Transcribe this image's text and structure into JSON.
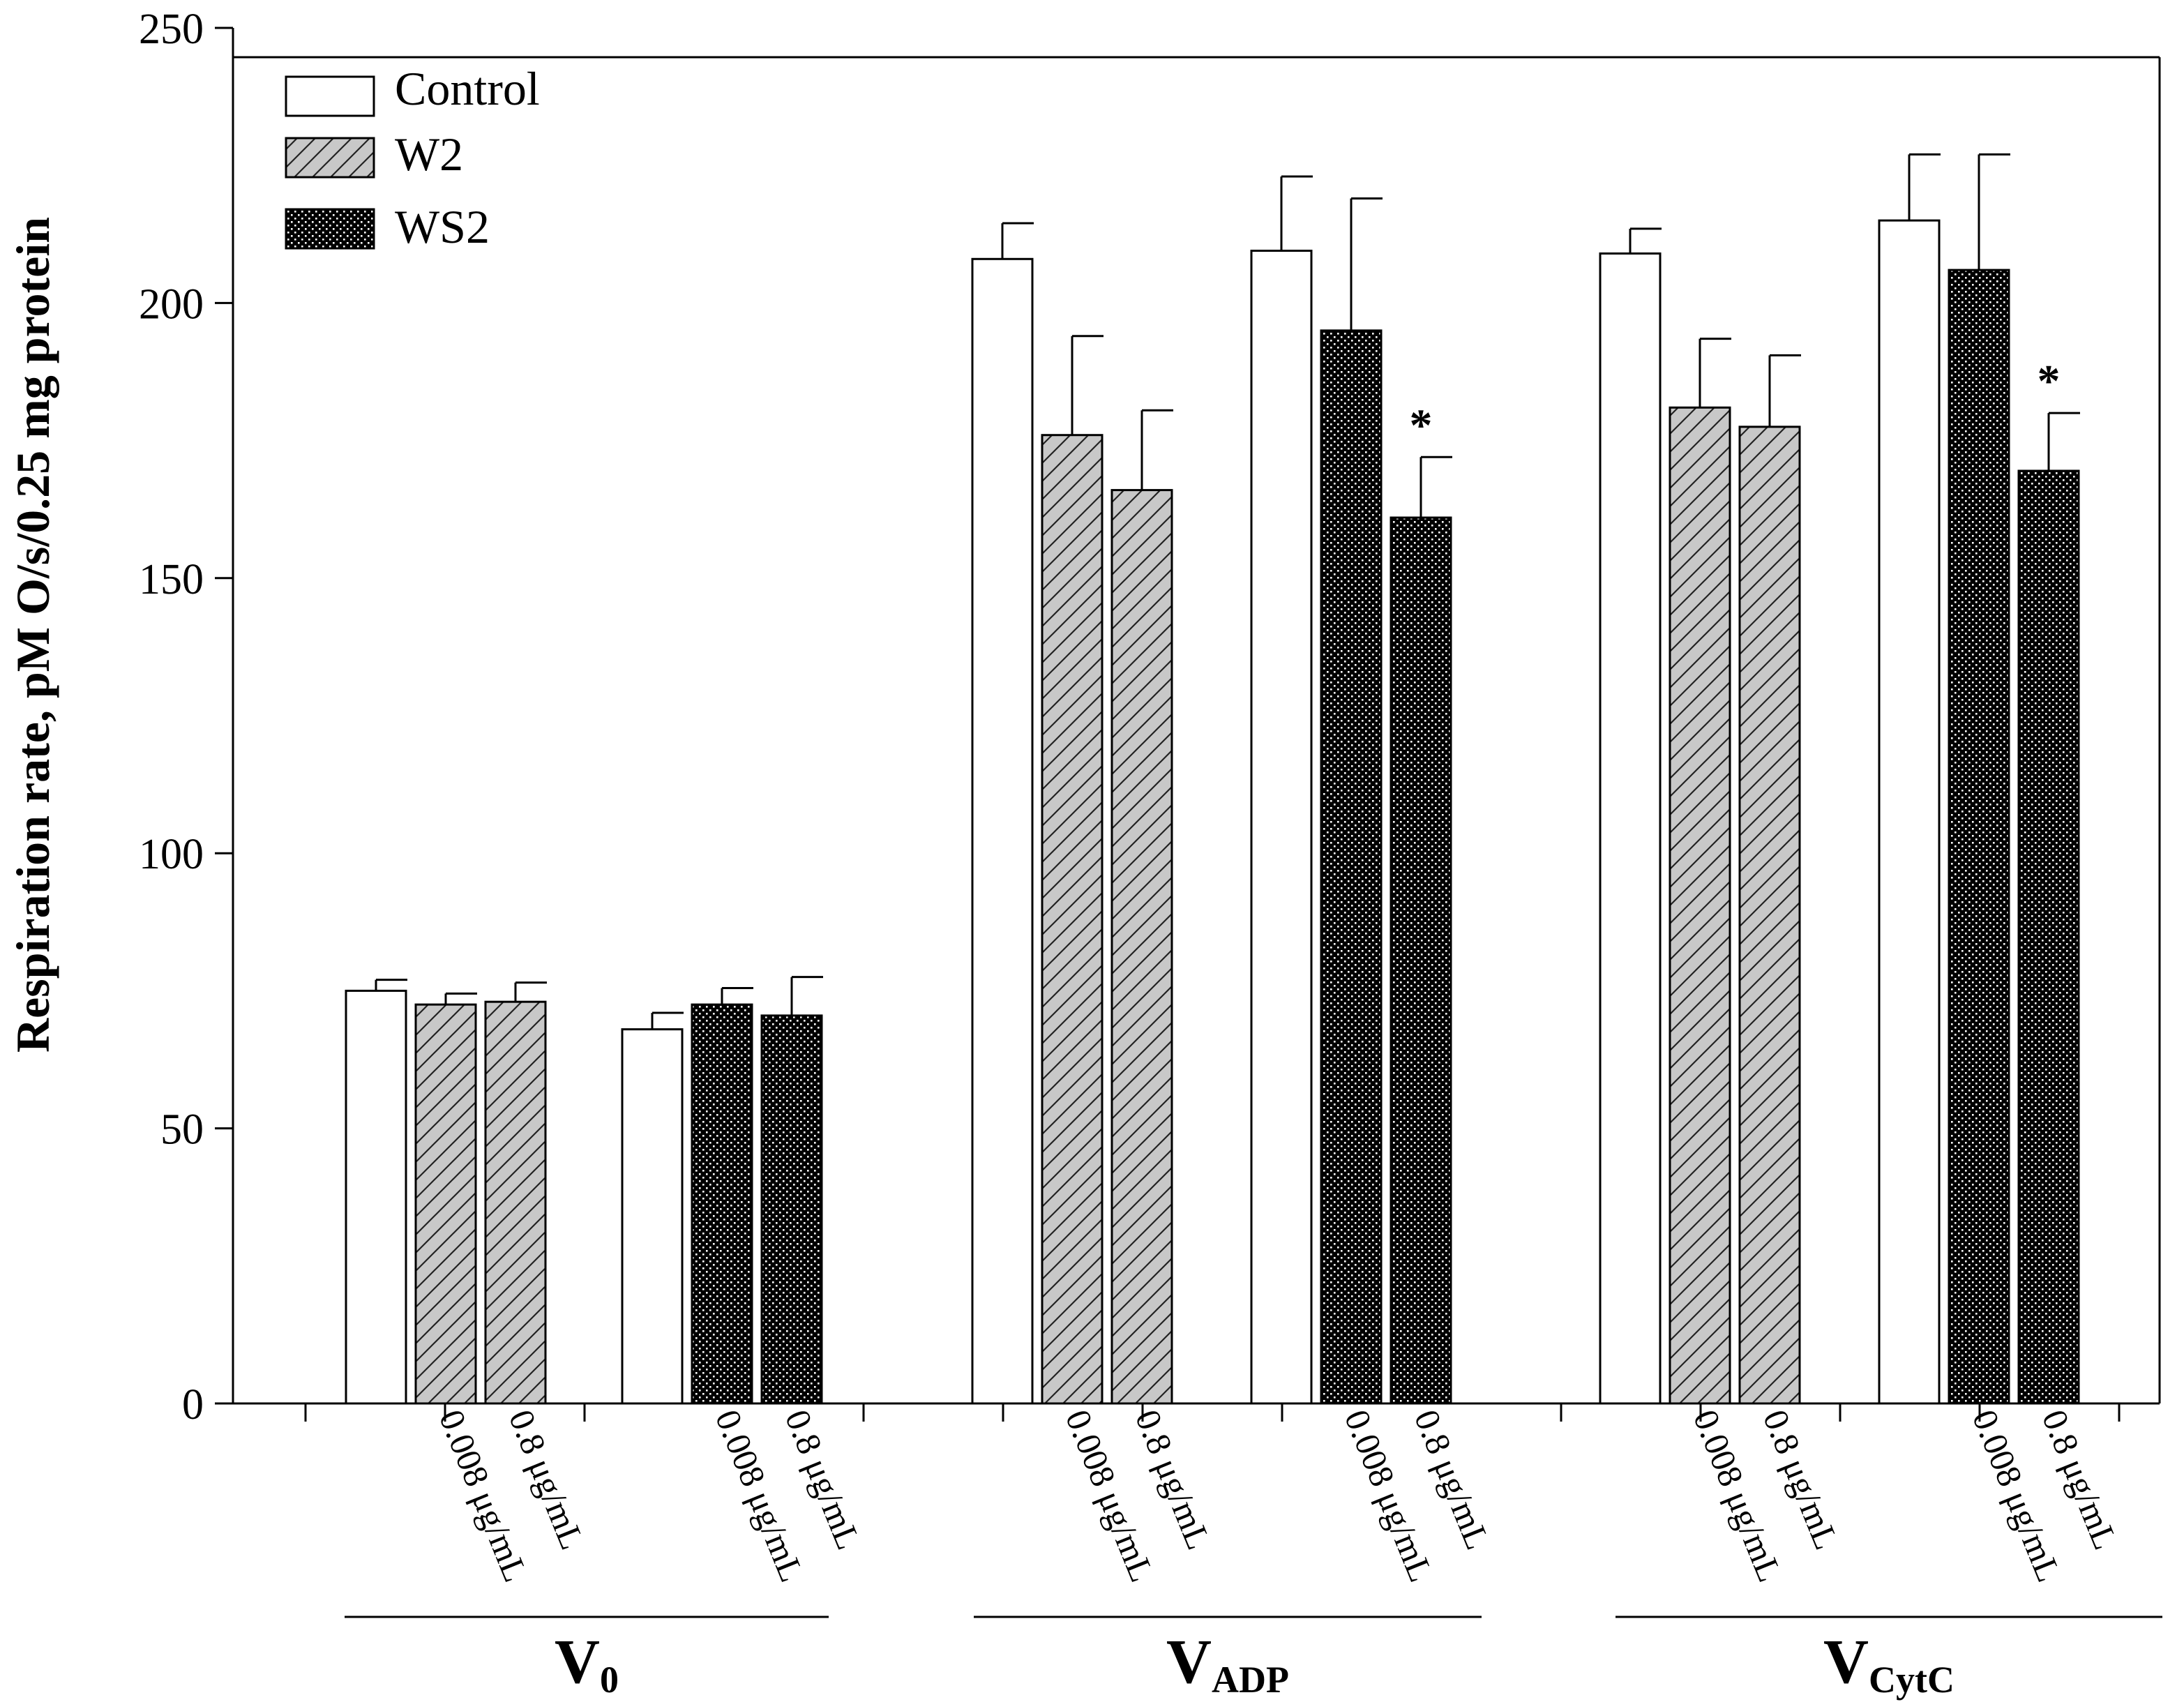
{
  "chart_data": {
    "type": "bar",
    "ylabel": "Respiration rate, pM O/s/0.25 mg protein",
    "ylim": [
      0,
      250
    ],
    "yticks": [
      0,
      50,
      100,
      150,
      200,
      250
    ],
    "legend": {
      "placement": "top-left",
      "entries": [
        {
          "name": "Control",
          "pattern": "open"
        },
        {
          "name": "W2",
          "pattern": "hatched-gray"
        },
        {
          "name": "WS2",
          "pattern": "dotted-black"
        }
      ]
    },
    "groups": [
      {
        "label_main": "V",
        "label_sub": "0",
        "clusters": [
          {
            "bars": [
              {
                "series": "Control",
                "value": 75,
                "error": 2,
                "xlabel": ""
              },
              {
                "series": "W2",
                "value": 72.5,
                "error": 2,
                "xlabel": "0.008 μg/mL"
              },
              {
                "series": "W2",
                "value": 73,
                "error": 3.5,
                "xlabel": "0.8 μg/mL"
              }
            ]
          },
          {
            "bars": [
              {
                "series": "Control",
                "value": 68,
                "error": 3,
                "xlabel": ""
              },
              {
                "series": "WS2",
                "value": 72.5,
                "error": 3,
                "xlabel": "0.008 μg/mL"
              },
              {
                "series": "WS2",
                "value": 70.5,
                "error": 7,
                "xlabel": "0.8 μg/mL"
              }
            ]
          }
        ]
      },
      {
        "label_main": "V",
        "label_sub": "ADP",
        "clusters": [
          {
            "bars": [
              {
                "series": "Control",
                "value": 208,
                "error": 6.5,
                "xlabel": ""
              },
              {
                "series": "W2",
                "value": 176,
                "error": 18,
                "xlabel": "0.008 μg/mL"
              },
              {
                "series": "W2",
                "value": 166,
                "error": 14.5,
                "xlabel": "0.8 μg/mL"
              }
            ]
          },
          {
            "bars": [
              {
                "series": "Control",
                "value": 209.5,
                "error": 13.5,
                "xlabel": ""
              },
              {
                "series": "WS2",
                "value": 195,
                "error": 24,
                "xlabel": "0.008 μg/mL"
              },
              {
                "series": "WS2",
                "value": 161,
                "error": 11,
                "xlabel": "0.8 μg/mL",
                "annotation": "*"
              }
            ]
          }
        ]
      },
      {
        "label_main": "V",
        "label_sub": "CytC",
        "clusters": [
          {
            "bars": [
              {
                "series": "Control",
                "value": 209,
                "error": 4.5,
                "xlabel": ""
              },
              {
                "series": "W2",
                "value": 181,
                "error": 12.5,
                "xlabel": "0.008 μg/mL"
              },
              {
                "series": "W2",
                "value": 177.5,
                "error": 13,
                "xlabel": "0.8 μg/mL"
              }
            ]
          },
          {
            "bars": [
              {
                "series": "Control",
                "value": 215,
                "error": 12,
                "xlabel": ""
              },
              {
                "series": "WS2",
                "value": 206,
                "error": 21,
                "xlabel": "0.008 μg/mL"
              },
              {
                "series": "WS2",
                "value": 169.5,
                "error": 10.5,
                "xlabel": "0.8 μg/mL",
                "annotation": "*"
              }
            ]
          }
        ]
      }
    ]
  }
}
